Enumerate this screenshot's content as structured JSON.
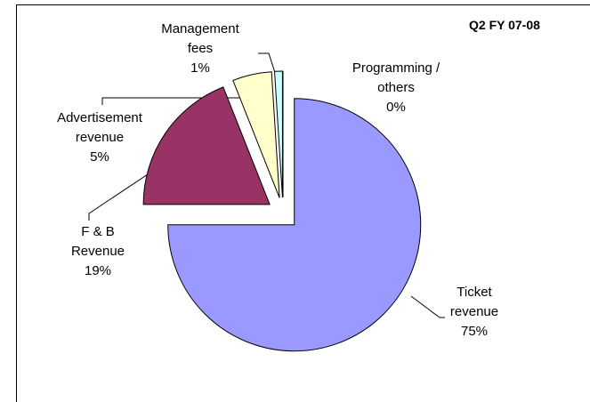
{
  "chart_data": {
    "type": "pie",
    "title": "Q2 FY 07-08",
    "categories": [
      "Ticket revenue",
      "F & B Revenue",
      "Advertisement revenue",
      "Management fees",
      "Programming / others"
    ],
    "values": [
      75,
      19,
      5,
      1,
      0
    ],
    "value_labels": [
      "75%",
      "19%",
      "5%",
      "1%",
      "0%"
    ],
    "colors": [
      "#9999ff",
      "#993366",
      "#ffffcc",
      "#ccffff",
      "#660066"
    ]
  }
}
